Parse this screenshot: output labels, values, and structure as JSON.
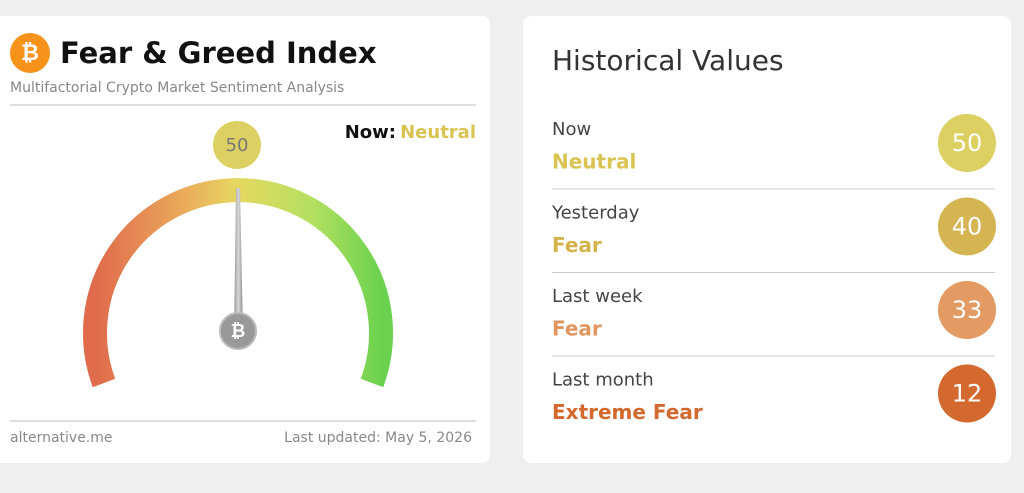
{
  "left_card": {
    "title": "Fear & Greed Index",
    "subtitle": "Multifactorial Crypto Market Sentiment Analysis",
    "now_label": "Now:",
    "now_classification": "Neutral",
    "now_color": "#d9c451",
    "value": 50,
    "value_color": "#ddd063",
    "footer_source": "alternative.me",
    "footer_updated": "Last updated: May 5, 2026"
  },
  "right_card": {
    "title": "Historical Values",
    "rows": [
      {
        "label": "Now",
        "classification": "Neutral",
        "value": 50,
        "color": "#ddd063",
        "text_color": "#d9c451"
      },
      {
        "label": "Yesterday",
        "classification": "Fear",
        "value": 40,
        "color": "#d4b552",
        "text_color": "#d4b24c"
      },
      {
        "label": "Last week",
        "classification": "Fear",
        "value": 33,
        "color": "#e39a63",
        "text_color": "#e0965e"
      },
      {
        "label": "Last month",
        "classification": "Extreme Fear",
        "value": 12,
        "color": "#d4692f",
        "text_color": "#d4692f"
      }
    ]
  }
}
